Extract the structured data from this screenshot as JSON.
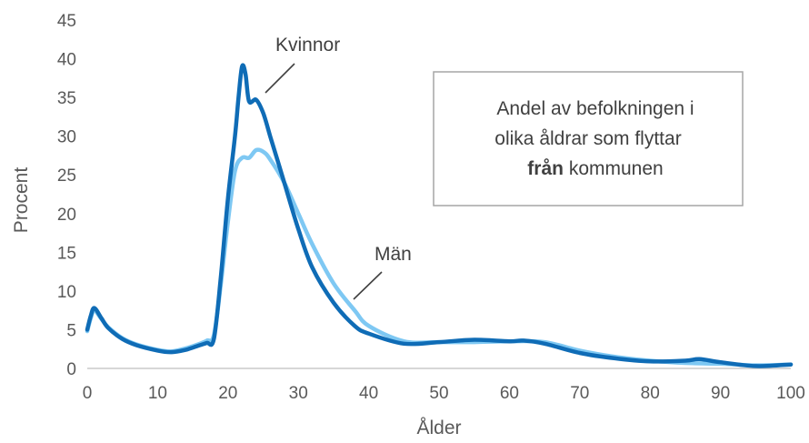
{
  "chart_data": {
    "type": "line",
    "xlabel": "Ålder",
    "ylabel": "Procent",
    "xlim": [
      0,
      100
    ],
    "ylim": [
      0,
      45
    ],
    "xticks": [
      0,
      10,
      20,
      30,
      40,
      50,
      60,
      70,
      80,
      90,
      100
    ],
    "yticks": [
      0,
      5,
      10,
      15,
      20,
      25,
      30,
      35,
      40,
      45
    ],
    "grid": false,
    "annotation": {
      "line1": "Andel av befolkningen i",
      "line2": "olika åldrar som flyttar",
      "line3_bold": "från",
      "line3_rest": " kommunen"
    },
    "series": [
      {
        "name": "Kvinnor",
        "color": "#0f6cb6",
        "x": [
          0,
          0.5,
          1,
          2,
          3,
          5,
          7,
          10,
          12,
          14,
          16,
          17,
          18,
          19,
          20,
          21,
          21.5,
          22,
          22.5,
          23,
          24,
          25,
          26,
          27,
          28,
          30,
          32,
          35,
          38,
          40,
          45,
          50,
          55,
          60,
          62,
          65,
          70,
          75,
          80,
          85,
          87,
          90,
          95,
          100
        ],
        "y": [
          5,
          6.8,
          7.8,
          6.5,
          5.2,
          3.8,
          3.0,
          2.3,
          2.1,
          2.4,
          3.0,
          3.3,
          3.8,
          12,
          22,
          30,
          35,
          39,
          38,
          34.5,
          34.7,
          33,
          30,
          27,
          24,
          18,
          13,
          8.5,
          5.5,
          4.5,
          3.2,
          3.4,
          3.7,
          3.5,
          3.6,
          3.2,
          2.0,
          1.3,
          0.9,
          1.0,
          1.2,
          0.8,
          0.3,
          0.5
        ]
      },
      {
        "name": "Män",
        "color": "#7ec8f3",
        "x": [
          0,
          0.5,
          1,
          2,
          3,
          5,
          7,
          10,
          12,
          14,
          16,
          17,
          18,
          19,
          20,
          21,
          22,
          23,
          24,
          25,
          26,
          28,
          30,
          32,
          35,
          38,
          40,
          45,
          50,
          55,
          60,
          65,
          70,
          75,
          80,
          85,
          90,
          95,
          100
        ],
        "y": [
          4.8,
          6.5,
          7.5,
          6.4,
          5.3,
          3.9,
          3.1,
          2.4,
          2.2,
          2.6,
          3.2,
          3.6,
          4.3,
          11,
          19,
          25.5,
          27.2,
          27.2,
          28.2,
          28,
          27,
          24,
          20,
          16,
          11,
          7.5,
          5.5,
          3.5,
          3.4,
          3.4,
          3.5,
          3.4,
          2.3,
          1.5,
          1.0,
          0.7,
          0.6,
          0.4,
          0.5
        ]
      }
    ]
  }
}
